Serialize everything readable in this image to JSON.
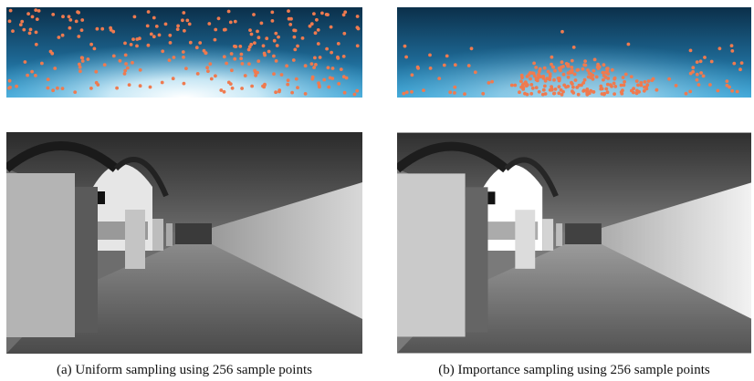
{
  "subfigures": [
    {
      "caption": "(a) Uniform sampling using 256 sample points"
    },
    {
      "caption": "(b) Importance sampling using 256 sample points"
    }
  ]
}
